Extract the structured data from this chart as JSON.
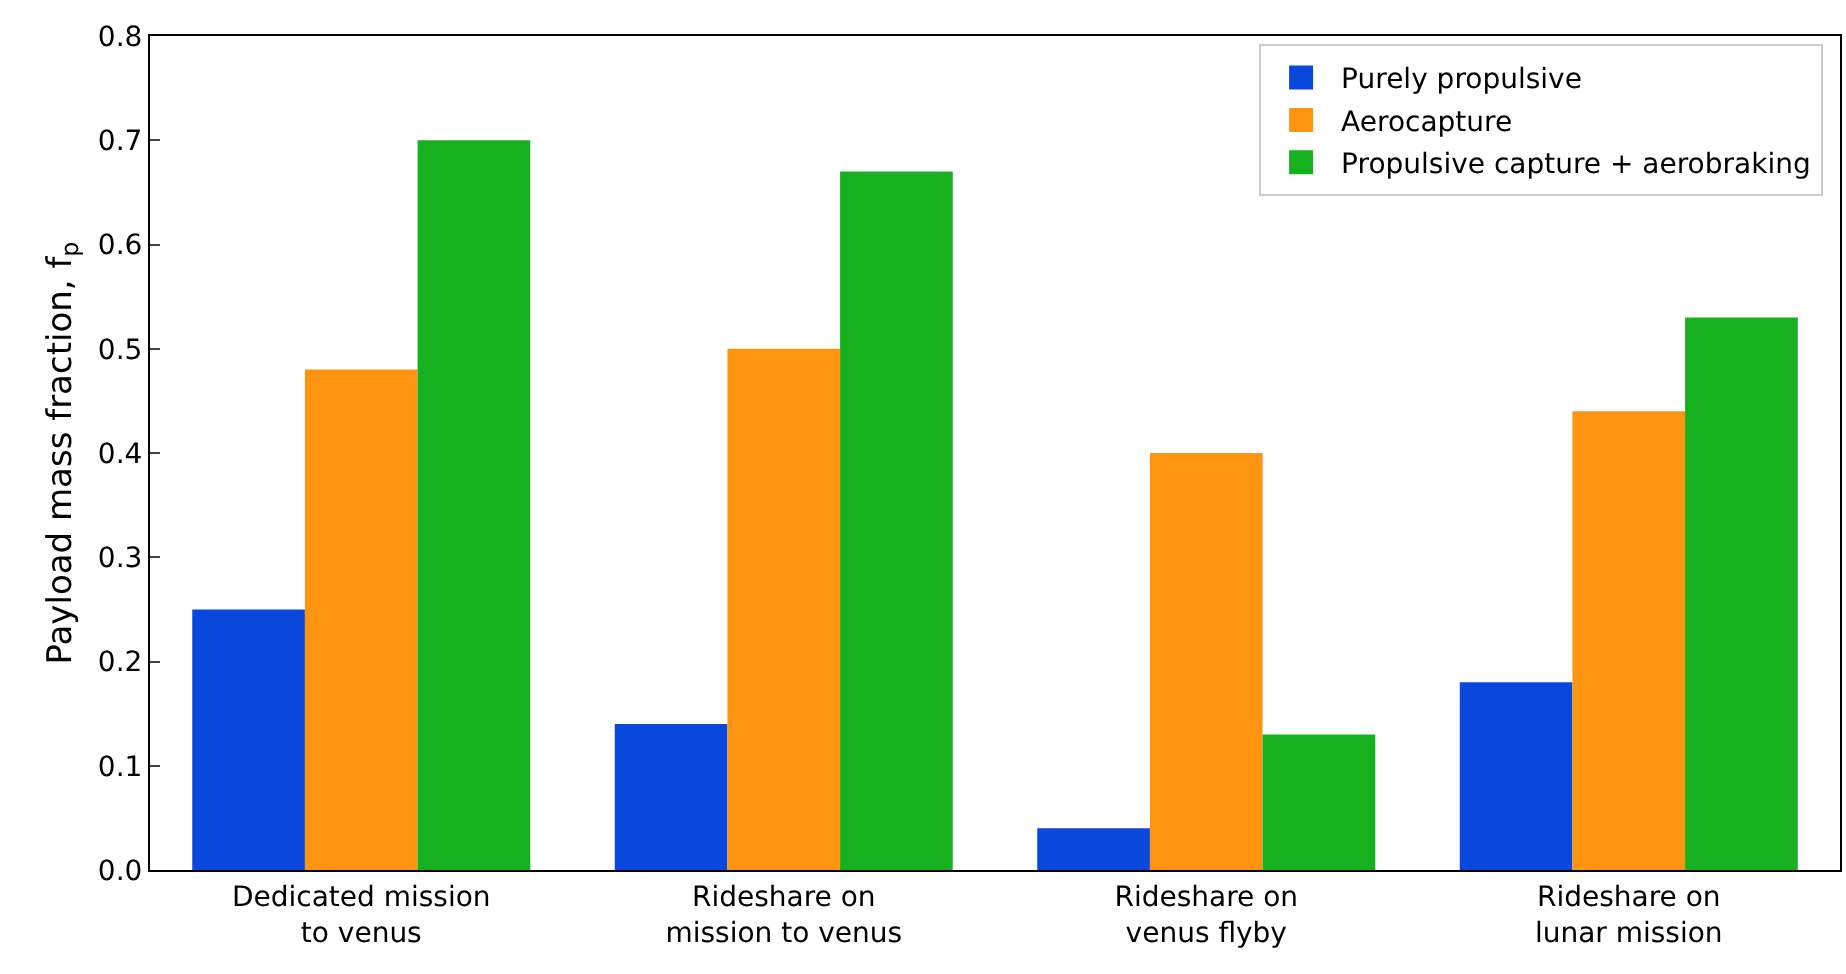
{
  "chart_data": {
    "type": "bar",
    "ylabel": "Payload mass fraction, f$_{p}$",
    "categories": [
      "Dedicated mission\nto venus",
      "Rideshare on\nmission to venus",
      "Rideshare on\nvenus flyby",
      "Rideshare on\nlunar mission"
    ],
    "series": [
      {
        "name": "Purely propulsive",
        "color": "#0a47dc",
        "values": [
          0.25,
          0.14,
          0.04,
          0.18
        ]
      },
      {
        "name": "Aerocapture",
        "color": "#ff9410",
        "values": [
          0.48,
          0.5,
          0.4,
          0.44
        ]
      },
      {
        "name": "Propulsive capture + aerobraking",
        "color": "#17b01e",
        "values": [
          0.7,
          0.67,
          0.13,
          0.53
        ]
      }
    ],
    "ylim": [
      0,
      0.8
    ],
    "yticks": [
      {
        "value": 0,
        "label": "0.0"
      },
      0.1,
      0.2,
      0.3,
      0.4,
      0.5,
      0.6,
      0.7,
      0.8
    ],
    "legend": "top right"
  }
}
